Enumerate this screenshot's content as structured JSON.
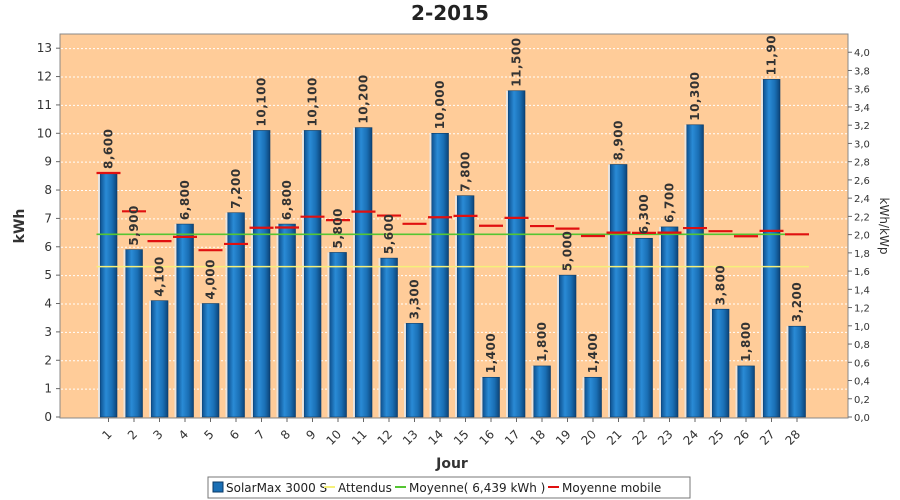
{
  "chart_data": {
    "type": "bar",
    "title": "2-2015",
    "xlabel": "Jour",
    "ylabel": "kWh",
    "y2label": "kWh/kWp",
    "ylim": [
      0,
      13.5
    ],
    "y2lim": [
      0,
      4.2
    ],
    "y_ticks": [
      "0",
      "1",
      "2",
      "3",
      "4",
      "5",
      "6",
      "7",
      "8",
      "9",
      "10",
      "11",
      "12",
      "13"
    ],
    "y2_ticks": [
      "0,0",
      "0,2",
      "0,4",
      "0,6",
      "0,8",
      "1,0",
      "1,2",
      "1,4",
      "1,6",
      "1,8",
      "2,0",
      "2,2",
      "2,4",
      "2,6",
      "2,8",
      "3,0",
      "3,2",
      "3,4",
      "3,6",
      "3,8",
      "4,0"
    ],
    "categories": [
      "1",
      "2",
      "3",
      "4",
      "5",
      "6",
      "7",
      "8",
      "9",
      "10",
      "11",
      "12",
      "13",
      "14",
      "15",
      "16",
      "17",
      "18",
      "19",
      "20",
      "21",
      "22",
      "23",
      "24",
      "25",
      "26",
      "27",
      "28"
    ],
    "series": [
      {
        "name": "SolarMax 3000 S",
        "values": [
          8.6,
          5.9,
          4.1,
          6.8,
          4.0,
          7.2,
          10.1,
          6.8,
          10.1,
          5.8,
          10.2,
          5.6,
          3.3,
          10.0,
          7.8,
          1.4,
          11.5,
          1.8,
          5.0,
          1.4,
          8.9,
          6.3,
          6.7,
          10.3,
          3.8,
          1.8,
          11.9,
          3.2
        ],
        "labels": [
          "8,600",
          "5,900",
          "4,100",
          "6,800",
          "4,000",
          "7,200",
          "10,100",
          "6,800",
          "10,100",
          "5,800",
          "10,200",
          "5,600",
          "3,300",
          "10,000",
          "7,800",
          "1,400",
          "11,500",
          "1,800",
          "5,000",
          "1,400",
          "8,900",
          "6,300",
          "6,700",
          "10,300",
          "3,800",
          "1,800",
          "11,90",
          "3,200"
        ]
      },
      {
        "name": "Attendus",
        "value": 5.3
      },
      {
        "name": "Moyenne( 6,439 kWh )",
        "value": 6.439
      },
      {
        "name": "Moyenne mobile",
        "values": [
          8.6,
          7.25,
          6.2,
          6.35,
          5.88,
          6.1,
          6.67,
          6.68,
          7.06,
          6.94,
          7.24,
          7.1,
          6.81,
          7.04,
          7.09,
          6.74,
          7.02,
          6.73,
          6.64,
          6.38,
          6.5,
          6.49,
          6.5,
          6.66,
          6.55,
          6.37,
          6.56,
          6.44
        ]
      }
    ],
    "colors": {
      "plot_bg": "#ffcc99",
      "bar": "#1a6fb5",
      "attendus": "#f5f07a",
      "moyenne": "#55c532",
      "moyenne_mobile": "#e01010"
    },
    "grid": true,
    "legend_position": "bottom"
  }
}
